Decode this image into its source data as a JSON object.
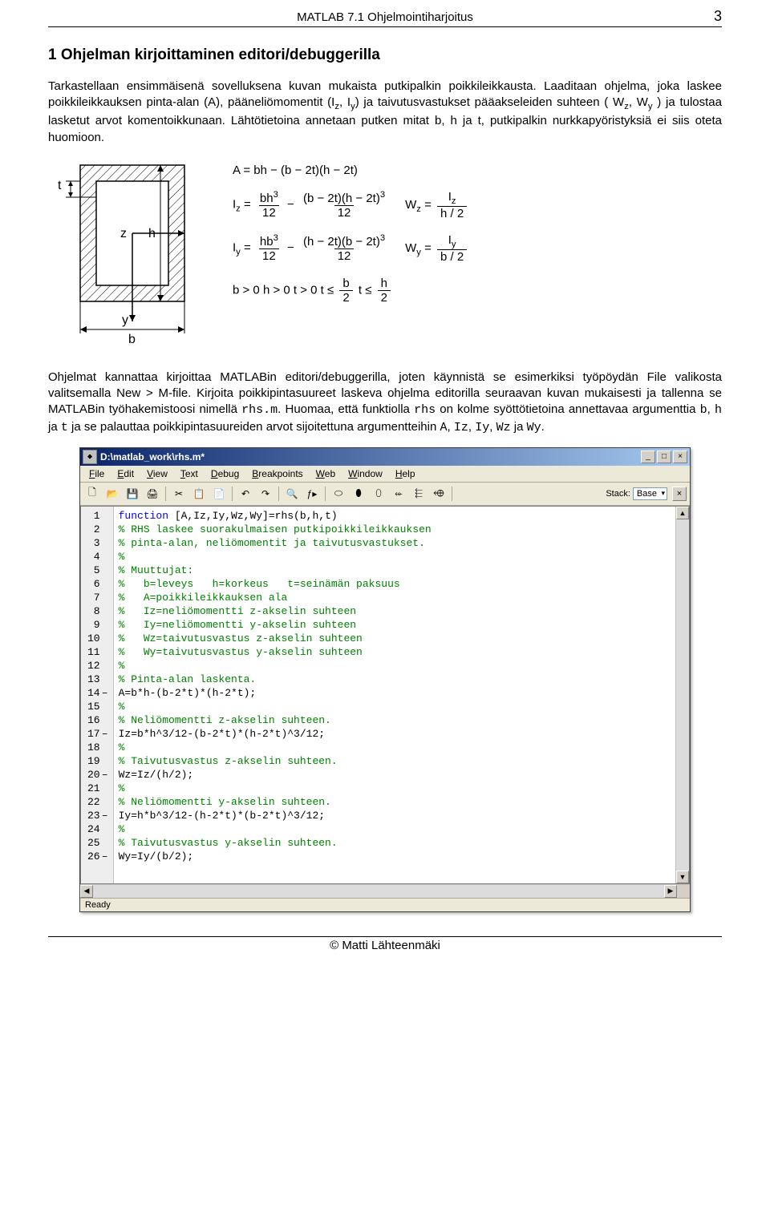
{
  "doc": {
    "header_center": "MATLAB 7.1 Ohjelmointiharjoitus",
    "page_number": "3",
    "section_title": "1  Ohjelman kirjoittaminen editori/debuggerilla",
    "para1": "Tarkastellaan ensimmäisenä sovelluksena kuvan mukaista putkipalkin poikkileikkausta. Laaditaan ohjelma, joka laskee poikkileikkauksen pinta-alan (A), pääneliömomentit (I",
    "para1_iz_sub": "z",
    "para1_iy_pre": ", I",
    "para1_iy_sub": "y",
    "para1_mid": ") ja taivutusvastukset pääakseleiden suhteen ( W",
    "para1_wz_sub": "z",
    "para1_wy_pre": ", W",
    "para1_wy_sub": "y",
    "para1_end": " ) ja tulostaa lasketut arvot komentoikkunaan. Lähtötietoina annetaan putken mitat b, h ja t, putkipalkin nurkkapyöristyksiä ei siis oteta huomioon.",
    "formulas": {
      "A_lhs": "A = bh − (b − 2t)(h − 2t)",
      "Iz_lhs": "I",
      "Iz_sub": "z",
      "Iz_eq": " =",
      "bh3_num": "bh",
      "over12": "12",
      "minus": " − ",
      "b2t_h2t_num1": "(b − 2t)(h − 2t)",
      "Wz_lhs": "W",
      "Wz_sub": "z",
      "Wz_eq": " =",
      "Wz_num": "I",
      "Wz_num_sub": "z",
      "Wz_den": "h / 2",
      "Iy_lhs": "I",
      "Iy_sub": "y",
      "Iy_eq": " =",
      "hb3_num": "hb",
      "h2t_b2t_num": "(h − 2t)(b − 2t)",
      "Wy_lhs": "W",
      "Wy_sub": "y",
      "Wy_eq": " =",
      "Wy_num": "I",
      "Wy_num_sub": "y",
      "Wy_den": "b / 2",
      "cond": "b > 0     h > 0     t > 0     t ≤",
      "cond_b2_num": "b",
      "cond_2": "2",
      "cond_gap": "     t ≤",
      "cond_h2_num": "h"
    },
    "para2_a": "Ohjelmat kannattaa kirjoittaa MATLABin editori/debuggerilla, joten käynnistä se esimerkiksi työpöydän File valikosta valitsemalla New > M-file. Kirjoita poikkipintasuureet laskeva ohjelma editorilla seuraavan kuvan mukaisesti ja tallenna se MATLABin työhakemistoosi nimellä ",
    "para2_code1": "rhs.m",
    "para2_b": ". Huomaa, että funktiolla ",
    "para2_code2": "rhs",
    "para2_c": " on kolme syöttötietoina annettavaa argumenttia ",
    "para2_code3": "b",
    "para2_c2": ", ",
    "para2_code4": "h",
    "para2_c3": " ja ",
    "para2_code5": "t",
    "para2_d": " ja se palauttaa poikkipintasuureiden arvot sijoitettuna argumentteihin ",
    "para2_code6": "A",
    "para2_d2": ", ",
    "para2_code7": "Iz",
    "para2_d3": ", ",
    "para2_code8": "Iy",
    "para2_d4": ", ",
    "para2_code9": "Wz",
    "para2_d5": " ja ",
    "para2_code10": "Wy",
    "para2_e": ".",
    "footer": "© Matti Lähteenmäki"
  },
  "diagram": {
    "labels": {
      "t": "t",
      "z": "z",
      "h": "h",
      "y": "y",
      "b": "b"
    },
    "outer_w": 130,
    "outer_h": 170,
    "wall_t": 20,
    "stroke": "#000000",
    "hatch_color": "#000000"
  },
  "editor": {
    "title": "D:\\matlab_work\\rhs.m*",
    "menus": [
      "File",
      "Edit",
      "View",
      "Text",
      "Debug",
      "Breakpoints",
      "Web",
      "Window",
      "Help"
    ],
    "stack_label": "Stack:",
    "stack_value": "Base",
    "status": "Ready",
    "toolbar_icons": [
      "🗋",
      "📂",
      "💾",
      "🖨",
      "",
      "✂",
      "📋",
      "📄",
      "",
      "↶",
      "↷",
      "",
      "🔍",
      "ƒ▸",
      "",
      "⬭",
      "⬮",
      "⬯",
      "⬰",
      "⬱",
      "⬲",
      ""
    ],
    "lines": [
      {
        "n": 1,
        "dash": "",
        "cls": "kw",
        "txt": "function [A,Iz,Iy,Wz,Wy]=rhs(b,h,t)"
      },
      {
        "n": 2,
        "dash": "",
        "cls": "cm",
        "txt": "% RHS laskee suorakulmaisen putkipoikkileikkauksen"
      },
      {
        "n": 3,
        "dash": "",
        "cls": "cm",
        "txt": "% pinta-alan, neliömomentit ja taivutusvastukset."
      },
      {
        "n": 4,
        "dash": "",
        "cls": "cm",
        "txt": "%"
      },
      {
        "n": 5,
        "dash": "",
        "cls": "cm",
        "txt": "% Muuttujat:"
      },
      {
        "n": 6,
        "dash": "",
        "cls": "cm",
        "txt": "%   b=leveys   h=korkeus   t=seinämän paksuus"
      },
      {
        "n": 7,
        "dash": "",
        "cls": "cm",
        "txt": "%   A=poikkileikkauksen ala"
      },
      {
        "n": 8,
        "dash": "",
        "cls": "cm",
        "txt": "%   Iz=neliömomentti z-akselin suhteen"
      },
      {
        "n": 9,
        "dash": "",
        "cls": "cm",
        "txt": "%   Iy=neliömomentti y-akselin suhteen"
      },
      {
        "n": 10,
        "dash": "",
        "cls": "cm",
        "txt": "%   Wz=taivutusvastus z-akselin suhteen"
      },
      {
        "n": 11,
        "dash": "",
        "cls": "cm",
        "txt": "%   Wy=taivutusvastus y-akselin suhteen"
      },
      {
        "n": 12,
        "dash": "",
        "cls": "cm",
        "txt": "%"
      },
      {
        "n": 13,
        "dash": "",
        "cls": "cm",
        "txt": "% Pinta-alan laskenta."
      },
      {
        "n": 14,
        "dash": "–",
        "cls": "txt",
        "txt": "A=b*h-(b-2*t)*(h-2*t);"
      },
      {
        "n": 15,
        "dash": "",
        "cls": "cm",
        "txt": "%"
      },
      {
        "n": 16,
        "dash": "",
        "cls": "cm",
        "txt": "% Neliömomentti z-akselin suhteen."
      },
      {
        "n": 17,
        "dash": "–",
        "cls": "txt",
        "txt": "Iz=b*h^3/12-(b-2*t)*(h-2*t)^3/12;"
      },
      {
        "n": 18,
        "dash": "",
        "cls": "cm",
        "txt": "%"
      },
      {
        "n": 19,
        "dash": "",
        "cls": "cm",
        "txt": "% Taivutusvastus z-akselin suhteen."
      },
      {
        "n": 20,
        "dash": "–",
        "cls": "txt",
        "txt": "Wz=Iz/(h/2);"
      },
      {
        "n": 21,
        "dash": "",
        "cls": "cm",
        "txt": "%"
      },
      {
        "n": 22,
        "dash": "",
        "cls": "cm",
        "txt": "% Neliömomentti y-akselin suhteen."
      },
      {
        "n": 23,
        "dash": "–",
        "cls": "txt",
        "txt": "Iy=h*b^3/12-(h-2*t)*(b-2*t)^3/12;"
      },
      {
        "n": 24,
        "dash": "",
        "cls": "cm",
        "txt": "%"
      },
      {
        "n": 25,
        "dash": "",
        "cls": "cm",
        "txt": "% Taivutusvastus y-akselin suhteen."
      },
      {
        "n": 26,
        "dash": "–",
        "cls": "txt",
        "txt": "Wy=Iy/(b/2);"
      }
    ]
  }
}
